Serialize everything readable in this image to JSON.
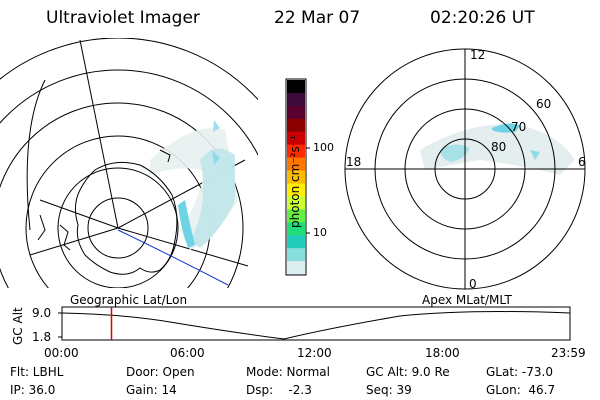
{
  "header": {
    "instrument": "Ultraviolet Imager",
    "date": "22 Mar 07",
    "time": "02:20:26 UT"
  },
  "colorbar": {
    "unit_label": "photon cm⁻²s⁻¹",
    "ticks": [
      "100",
      "10"
    ],
    "colors": [
      "#000000",
      "#3b0a3b",
      "#5a0030",
      "#8b0000",
      "#cc0000",
      "#ff2a00",
      "#ff7700",
      "#ffbb00",
      "#ffee00",
      "#ccff33",
      "#66ee44",
      "#22dd77",
      "#22ccbb",
      "#88dddd",
      "#ddeeee"
    ]
  },
  "polar_plot": {
    "mlt_labels": {
      "top": "12",
      "left": "18",
      "right": "6",
      "bottom": "0"
    },
    "lat_labels": [
      "60",
      "70",
      "80"
    ]
  },
  "timeline": {
    "y_axis_label": "GC Alt",
    "y_ticks": [
      "9.0",
      "1.8"
    ],
    "left_caption": "Geographic Lat/Lon",
    "right_caption": "Apex MLat/MLT",
    "x_ticks": [
      "00:00",
      "06:00",
      "12:00",
      "18:00",
      "23:59"
    ],
    "current_time_fraction": 0.0975
  },
  "info": {
    "row1": [
      "Flt: LBHL",
      "Door: Open",
      "Mode: Normal",
      "GC Alt: 9.0 Re",
      "GLat: -73.0"
    ],
    "row2": [
      "IP: 36.0",
      "Gain: 14",
      "Dsp:    -2.3",
      "Seq: 39",
      "GLon:  46.7"
    ]
  },
  "styles": {
    "aurora_color": "#6fd3e6",
    "marker_color": "#dd0000",
    "coastline_color": "#000000",
    "mag_line_color": "#1a2fd0"
  }
}
